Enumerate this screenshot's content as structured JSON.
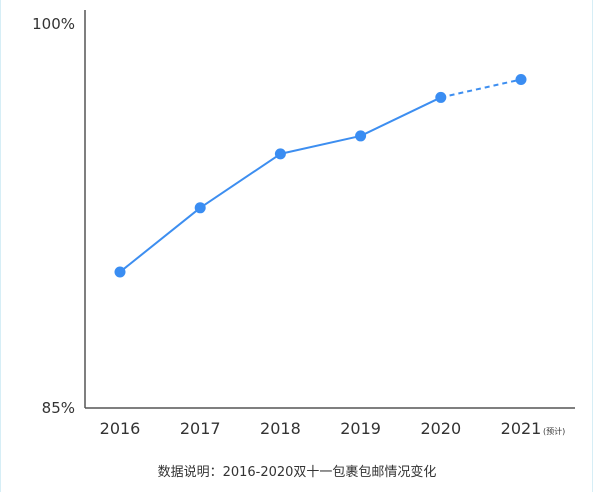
{
  "chart_data": {
    "type": "line",
    "x": [
      "2016",
      "2017",
      "2018",
      "2019",
      "2020",
      "2021"
    ],
    "x_suffix": {
      "index": 5,
      "text": "(预计)"
    },
    "y_ticks": [
      "100%",
      "85%"
    ],
    "ylim": [
      85,
      100
    ],
    "series": [
      {
        "values": [
          90.3,
          92.8,
          94.9,
          95.6,
          97.1,
          97.8
        ],
        "projected_from_index": 4
      }
    ],
    "note": "数据说明：2016-2020双十一包裹包邮情况变化",
    "grid": false,
    "colors": {
      "line": "#3d8ef0",
      "marker": "#3a8df2",
      "axis": "#555555"
    }
  }
}
